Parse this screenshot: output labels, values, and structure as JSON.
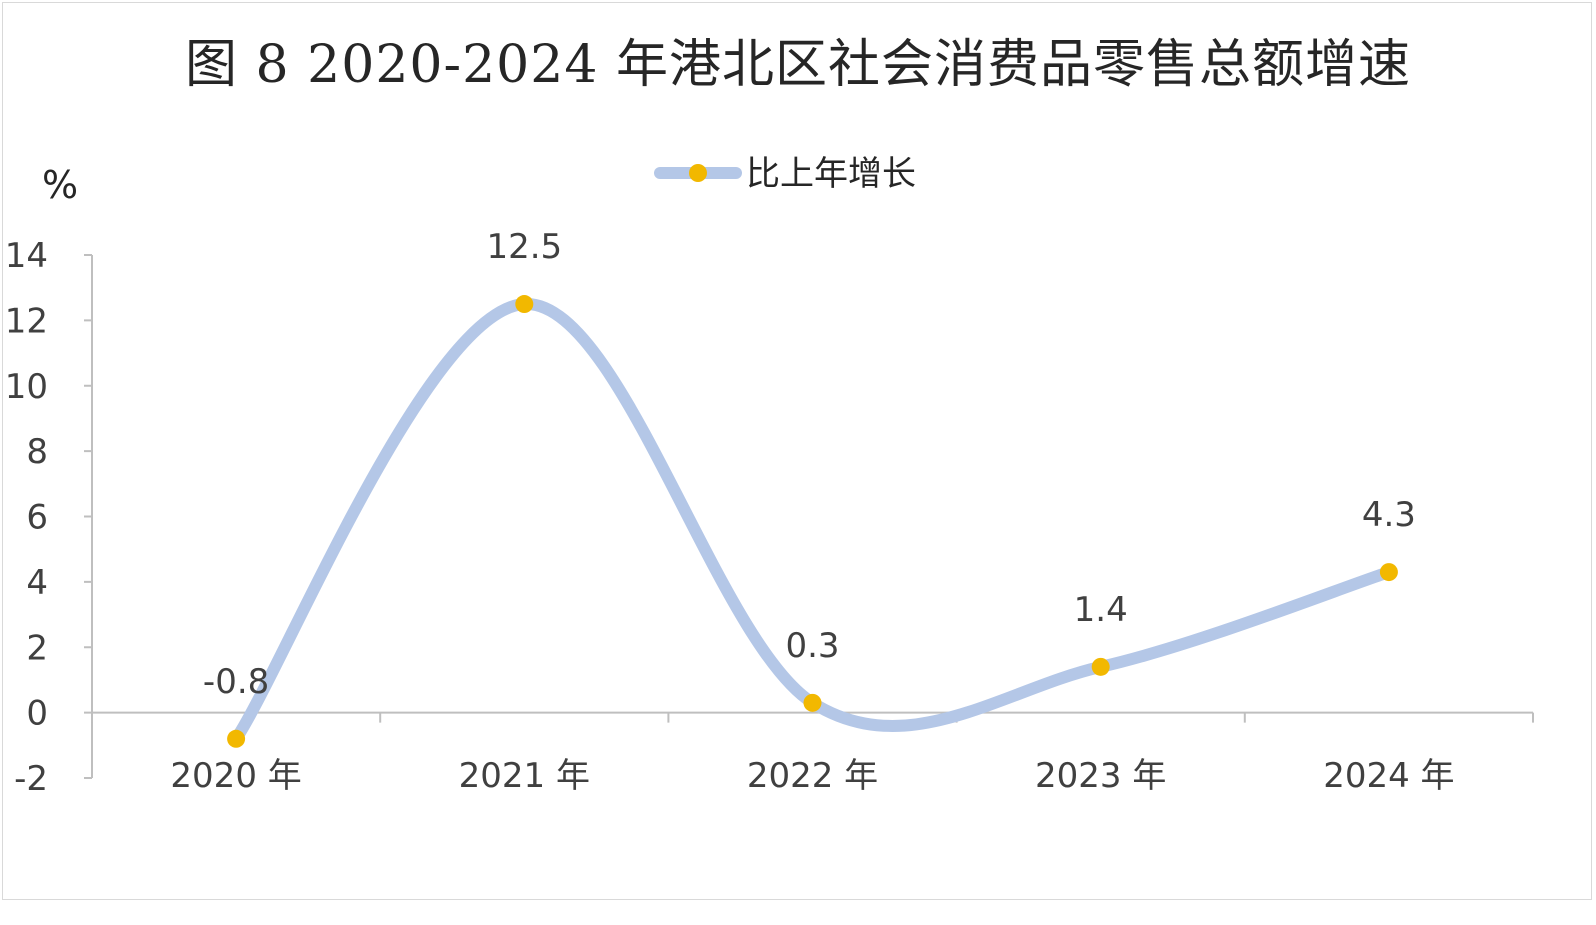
{
  "chart_data": {
    "type": "line",
    "title": "图 8  2020-2024 年港北区社会消费品零售总额增速",
    "ylabel": "%",
    "categories": [
      "2020 年",
      "2021 年",
      "2022 年",
      "2023 年",
      "2024 年"
    ],
    "series": [
      {
        "name": "比上年增长",
        "values": [
          -0.8,
          12.5,
          0.3,
          1.4,
          4.3
        ]
      }
    ],
    "data_labels": [
      "-0.8",
      "12.5",
      "0.3",
      "1.4",
      "4.3"
    ],
    "ylim": [
      -2,
      14
    ],
    "yticks": [
      -2,
      0,
      2,
      4,
      6,
      8,
      10,
      12,
      14
    ],
    "smooth": true,
    "grid": false,
    "legend_position": "top",
    "colors": {
      "line": "#b4c7e7",
      "marker": "#f2b800",
      "axis": "#bfbfbf"
    }
  }
}
